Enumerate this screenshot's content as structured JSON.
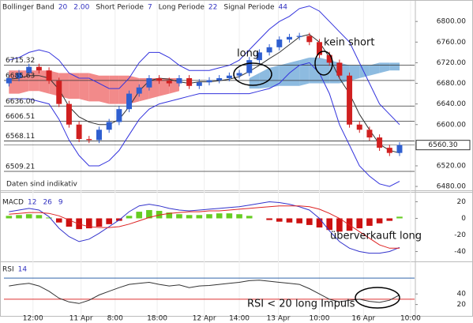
{
  "chart_data": [
    {
      "type": "candlestick",
      "header": [
        [
          "Bollinger Band",
          20,
          {
            "value": 2,
            "label": "2.00"
          }
        ],
        [
          "Short Periode",
          7
        ],
        [
          "Long Periode",
          22
        ],
        [
          "Signal Periode",
          44
        ]
      ],
      "note": "Daten sind indikativ",
      "x": [
        0,
        1,
        2,
        3,
        4,
        5,
        6,
        7,
        8,
        9,
        10,
        11,
        12,
        13,
        14,
        15,
        16,
        17,
        18,
        19,
        20,
        21,
        22,
        23,
        24,
        25,
        26,
        27,
        28,
        29,
        30,
        31,
        32,
        33,
        34,
        35,
        36,
        37,
        38,
        39
      ],
      "xlim": [
        -0.5,
        40.5
      ],
      "xticks": [
        {
          "value": 2.4,
          "label": "12:00"
        },
        {
          "value": 7.2,
          "label": "11 Apr"
        },
        {
          "value": 10.6,
          "label": "8:00"
        },
        {
          "value": 14.8,
          "label": "18:00"
        },
        {
          "value": 19.5,
          "label": "12 Apr"
        },
        {
          "value": 23,
          "label": "14:00"
        },
        {
          "value": 26.9,
          "label": "13 Apr"
        },
        {
          "value": 31,
          "label": "10:00"
        },
        {
          "value": 35.4,
          "label": "16 Apr"
        },
        {
          "value": 40.1,
          "label": "10:00"
        }
      ],
      "ylim": [
        6474,
        6834
      ],
      "yticks": [
        {
          "value": 6800,
          "label": "6800.00"
        },
        {
          "value": 6760,
          "label": "6760.00"
        },
        {
          "value": 6720,
          "label": "6720.00"
        },
        {
          "value": 6680,
          "label": "6680.00"
        },
        {
          "value": 6640,
          "label": "6640.00"
        },
        {
          "value": 6600,
          "label": "6600.00"
        },
        {
          "value": 6520,
          "label": "6520.00"
        },
        {
          "value": 6480,
          "label": "6480.00"
        }
      ],
      "levels": [
        {
          "value": 6715.32,
          "label": "6715.32"
        },
        {
          "value": 6685.63,
          "label": "6685.63"
        },
        {
          "value": 6636,
          "label": "6636.00"
        },
        {
          "value": 6606.51,
          "label": "6606.51"
        },
        {
          "value": 6568.11,
          "label": "6568.11"
        },
        {
          "value": 6509.21,
          "label": "6509.21"
        }
      ],
      "last": {
        "value": 6560.3,
        "label": "6560.30"
      },
      "up_color": "#2f5fd0",
      "down_color": "#d02020",
      "open": [
        6680,
        6690,
        6700,
        6712,
        6705,
        6685,
        6640,
        6600,
        6572,
        6570,
        6590,
        6605,
        6630,
        6660,
        6672,
        6690,
        6685,
        6680,
        6690,
        6675,
        6682,
        6686,
        6690,
        6695,
        6700,
        6725,
        6740,
        6750,
        6765,
        6770,
        6772,
        6760,
        6735,
        6720,
        6695,
        6600,
        6590,
        6575,
        6555,
        6545
      ],
      "high": [
        6696,
        6706,
        6718,
        6718,
        6711,
        6691,
        6646,
        6606,
        6578,
        6596,
        6611,
        6636,
        6666,
        6678,
        6696,
        6696,
        6691,
        6696,
        6696,
        6688,
        6692,
        6696,
        6701,
        6706,
        6731,
        6746,
        6756,
        6771,
        6776,
        6778,
        6778,
        6766,
        6741,
        6726,
        6701,
        6606,
        6596,
        6581,
        6561,
        6566
      ],
      "low": [
        6674,
        6684,
        6694,
        6699,
        6679,
        6634,
        6594,
        6566,
        6564,
        6564,
        6584,
        6599,
        6624,
        6654,
        6666,
        6679,
        6674,
        6674,
        6669,
        6669,
        6676,
        6680,
        6684,
        6689,
        6694,
        6719,
        6734,
        6744,
        6759,
        6764,
        6754,
        6729,
        6714,
        6689,
        6594,
        6584,
        6569,
        6549,
        6539,
        6539
      ],
      "close": [
        6690,
        6700,
        6712,
        6705,
        6685,
        6640,
        6600,
        6572,
        6570,
        6590,
        6605,
        6630,
        6660,
        6672,
        6690,
        6685,
        6680,
        6690,
        6675,
        6682,
        6686,
        6690,
        6695,
        6700,
        6725,
        6740,
        6750,
        6765,
        6770,
        6772,
        6760,
        6735,
        6720,
        6695,
        6600,
        6590,
        6575,
        6555,
        6545,
        6560.3
      ],
      "cloud": {
        "up_color": "#8dbbe0",
        "down_color": "#f28a8a",
        "a": [
          6660,
          6660,
          6665,
          6665,
          6660,
          6655,
          6650,
          6650,
          6645,
          6645,
          6640,
          6640,
          6640,
          6645,
          6650,
          6655,
          6660,
          6665,
          null,
          null,
          null,
          null,
          null,
          null,
          6690,
          6700,
          6710,
          6715,
          6720,
          6725,
          6730,
          6730,
          6725,
          6720,
          6715,
          6715,
          6715,
          6720,
          6720,
          6720
        ],
        "b": [
          6705,
          6705,
          6705,
          6705,
          6705,
          6700,
          6700,
          6700,
          6700,
          6695,
          6695,
          6695,
          6695,
          6690,
          6690,
          6690,
          6690,
          6690,
          null,
          null,
          null,
          null,
          null,
          null,
          6670,
          6670,
          6672,
          6675,
          6675,
          6675,
          6680,
          6680,
          6680,
          6680,
          6685,
          6690,
          6695,
          6700,
          6705,
          6705
        ]
      },
      "series": [
        {
          "color": "#3333dd",
          "values": [
            6725,
            6730,
            6740,
            6745,
            6740,
            6725,
            6700,
            6690,
            6690,
            6680,
            6670,
            6670,
            6690,
            6720,
            6740,
            6740,
            6730,
            6715,
            6705,
            6705,
            6705,
            6710,
            6715,
            6725,
            6745,
            6765,
            6785,
            6800,
            6810,
            6825,
            6830,
            6820,
            6800,
            6780,
            6760,
            6720,
            6680,
            6640,
            6620,
            6600
          ]
        },
        {
          "color": "#3333dd",
          "values": [
            6650,
            6650,
            6650,
            6645,
            6640,
            6610,
            6570,
            6540,
            6520,
            6520,
            6530,
            6550,
            6580,
            6610,
            6630,
            6640,
            6645,
            6650,
            6655,
            6660,
            6660,
            6660,
            6660,
            6660,
            6660,
            6665,
            6670,
            6680,
            6700,
            6715,
            6720,
            6700,
            6660,
            6600,
            6560,
            6520,
            6500,
            6485,
            6480,
            6490
          ]
        },
        {
          "color": "#333333",
          "values": [
            6688,
            6690,
            6695,
            6695,
            6690,
            6668,
            6635,
            6615,
            6605,
            6600,
            6600,
            6610,
            6635,
            6665,
            6685,
            6690,
            6688,
            6683,
            6680,
            6683,
            6683,
            6685,
            6688,
            6693,
            6703,
            6715,
            6728,
            6740,
            6755,
            6770,
            6775,
            6760,
            6730,
            6690,
            6660,
            6620,
            6590,
            6562,
            6550,
            6545
          ]
        }
      ],
      "annotations": [
        "long",
        "kein short"
      ]
    },
    {
      "type": "macd",
      "header": [
        "MACD",
        12,
        26,
        9
      ],
      "ylim": [
        -49,
        29
      ],
      "yticks": [
        20,
        0,
        -20,
        -40
      ],
      "pos_color": "#66cc22",
      "neg_color": "#cc1111",
      "values": [
        3,
        4,
        5,
        4,
        1,
        -5,
        -10,
        -13,
        -12,
        -10,
        -7,
        -3,
        3,
        8,
        10,
        9,
        7,
        5,
        4,
        4,
        5,
        6,
        6,
        5,
        3,
        0,
        -2,
        -4,
        -5,
        -6,
        -8,
        -11,
        -14,
        -16,
        -15,
        -12,
        -9,
        -6,
        -3,
        2
      ],
      "series": [
        {
          "color": "#3333cc",
          "values": [
            8,
            10,
            12,
            10,
            2,
            -12,
            -22,
            -28,
            -25,
            -18,
            -10,
            -2,
            8,
            15,
            17,
            15,
            12,
            10,
            9,
            10,
            11,
            12,
            13,
            14,
            16,
            18,
            20,
            19,
            17,
            14,
            10,
            0,
            -15,
            -28,
            -36,
            -40,
            -42,
            -42,
            -40,
            -35
          ]
        },
        {
          "color": "#dd2222",
          "values": [
            5,
            6,
            7,
            7,
            6,
            3,
            -2,
            -7,
            -10,
            -11,
            -11,
            -10,
            -7,
            -3,
            1,
            4,
            6,
            7,
            8,
            8,
            9,
            9,
            10,
            11,
            12,
            13,
            14,
            15,
            15,
            15,
            14,
            11,
            6,
            0,
            -8,
            -16,
            -24,
            -32,
            -36,
            -36
          ]
        }
      ],
      "annotations": [
        "überverkauft long"
      ]
    },
    {
      "type": "line",
      "header": [
        "RSI",
        14
      ],
      "ylim": [
        3,
        94
      ],
      "yticks": [
        40,
        20
      ],
      "hlines": [
        {
          "value": 70,
          "color": "#3366aa"
        },
        {
          "value": 30,
          "color": "#dd3333"
        }
      ],
      "color": "#333333",
      "values": [
        55,
        58,
        60,
        55,
        45,
        32,
        25,
        22,
        28,
        38,
        45,
        52,
        58,
        60,
        62,
        58,
        55,
        57,
        52,
        55,
        56,
        58,
        60,
        62,
        65,
        66,
        64,
        62,
        60,
        58,
        50,
        40,
        30,
        25,
        28,
        30,
        26,
        24,
        28,
        38
      ],
      "annotations": [
        "RSI < 20 long Impuls"
      ]
    }
  ]
}
